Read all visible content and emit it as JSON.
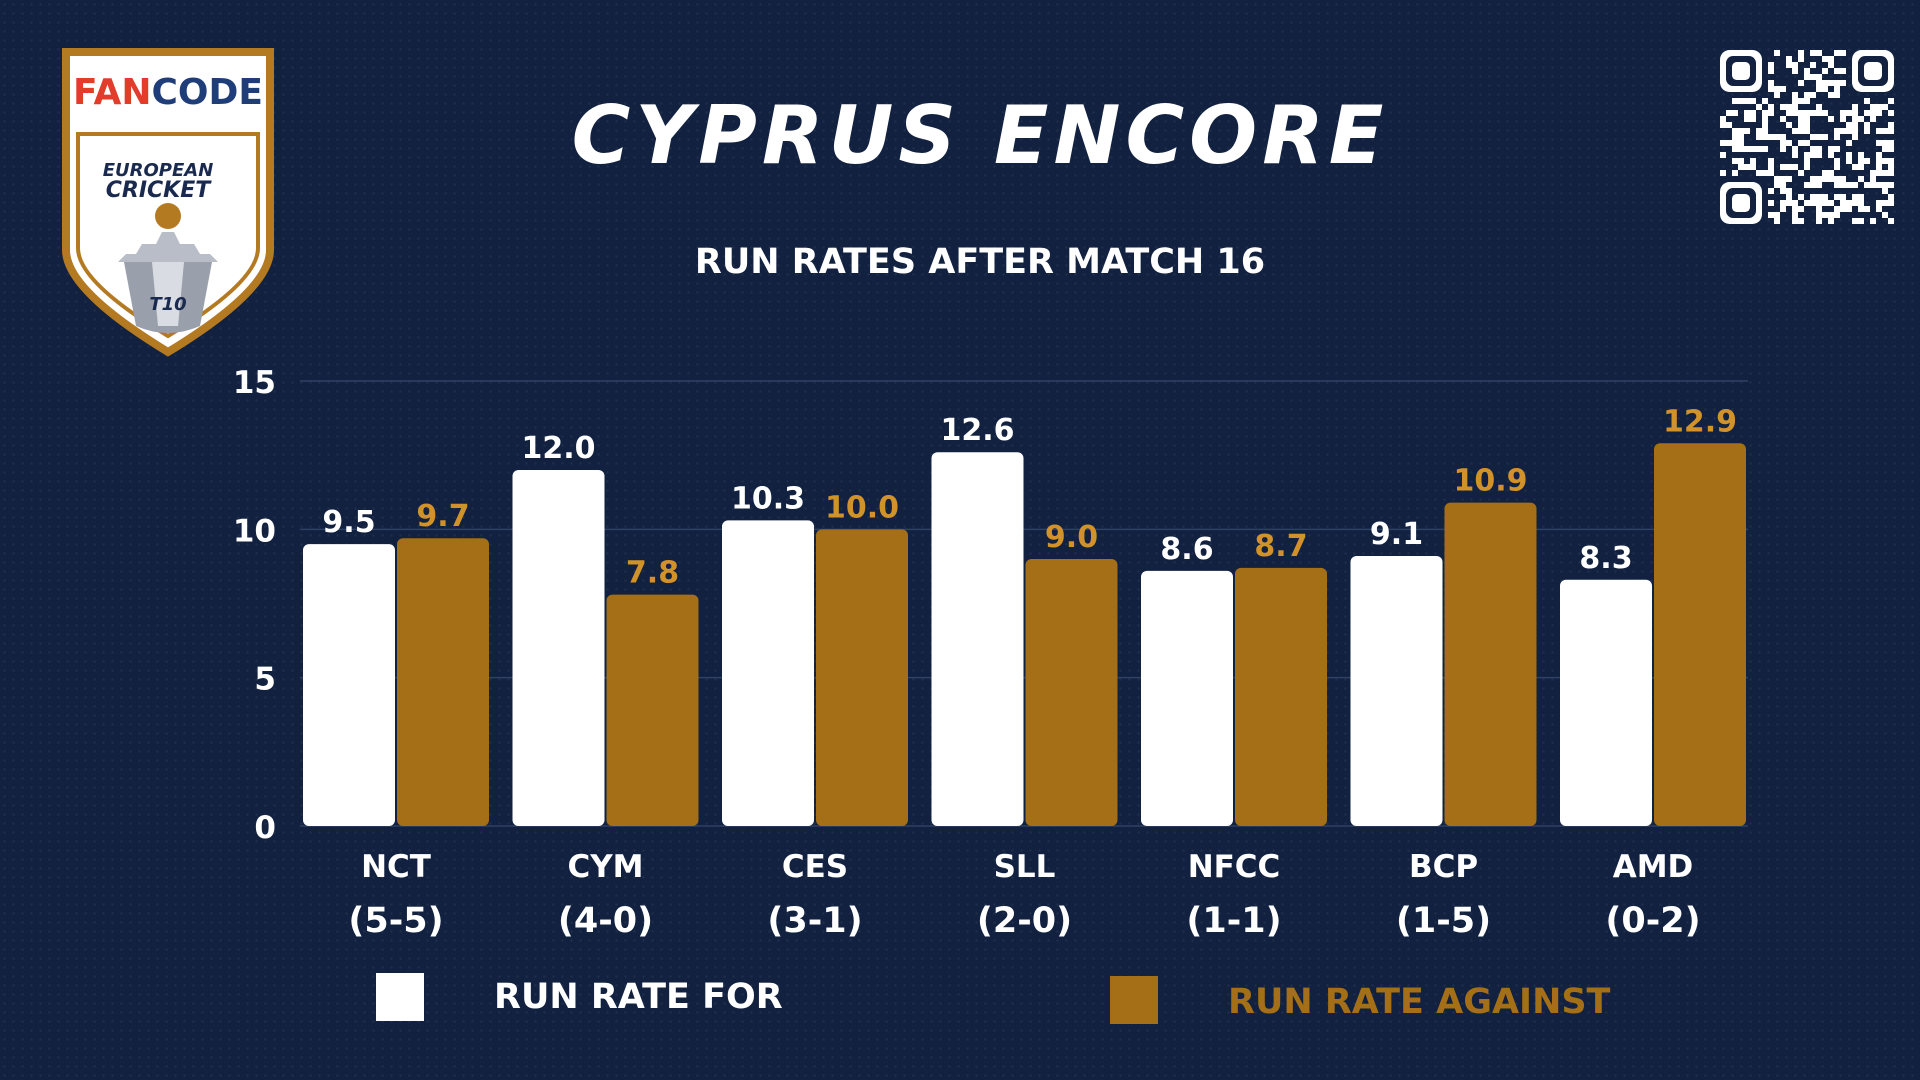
{
  "header": {
    "title": "CYPRUS ENCORE",
    "subtitle": "RUN RATES AFTER MATCH 16"
  },
  "logo": {
    "brand": "FANCODE",
    "line1": "EUROPEAN",
    "line2": "CRICKET",
    "format": "T10"
  },
  "colors": {
    "background": "#11213f",
    "for": "#ffffff",
    "against": "#a46f17",
    "grid": "#2f4164"
  },
  "legend": {
    "for_label": "RUN RATE FOR",
    "against_label": "RUN RATE AGAINST"
  },
  "chart_data": {
    "type": "bar",
    "title": "RUN RATES AFTER MATCH 16",
    "categories": [
      "NCT",
      "CYM",
      "CES",
      "SLL",
      "NFCC",
      "BCP",
      "AMD"
    ],
    "category_records": [
      "(5-5)",
      "(4-0)",
      "(3-1)",
      "(2-0)",
      "(1-1)",
      "(1-5)",
      "(0-2)"
    ],
    "series": [
      {
        "name": "RUN RATE FOR",
        "values": [
          9.5,
          12.0,
          10.3,
          12.6,
          8.6,
          9.1,
          8.3
        ],
        "labels": [
          "9.5",
          "12.0",
          "10.3",
          "12.6",
          "8.6",
          "9.1",
          "8.3"
        ]
      },
      {
        "name": "RUN RATE AGAINST",
        "values": [
          9.7,
          7.8,
          10.0,
          9.0,
          8.7,
          10.9,
          12.9
        ],
        "labels": [
          "9.7",
          "7.8",
          "10.0",
          "9.0",
          "8.7",
          "10.9",
          "12.9"
        ]
      }
    ],
    "ylim": [
      0,
      15
    ],
    "yticks": [
      0,
      5,
      10,
      15
    ],
    "grid": true,
    "legend_position": "bottom"
  }
}
